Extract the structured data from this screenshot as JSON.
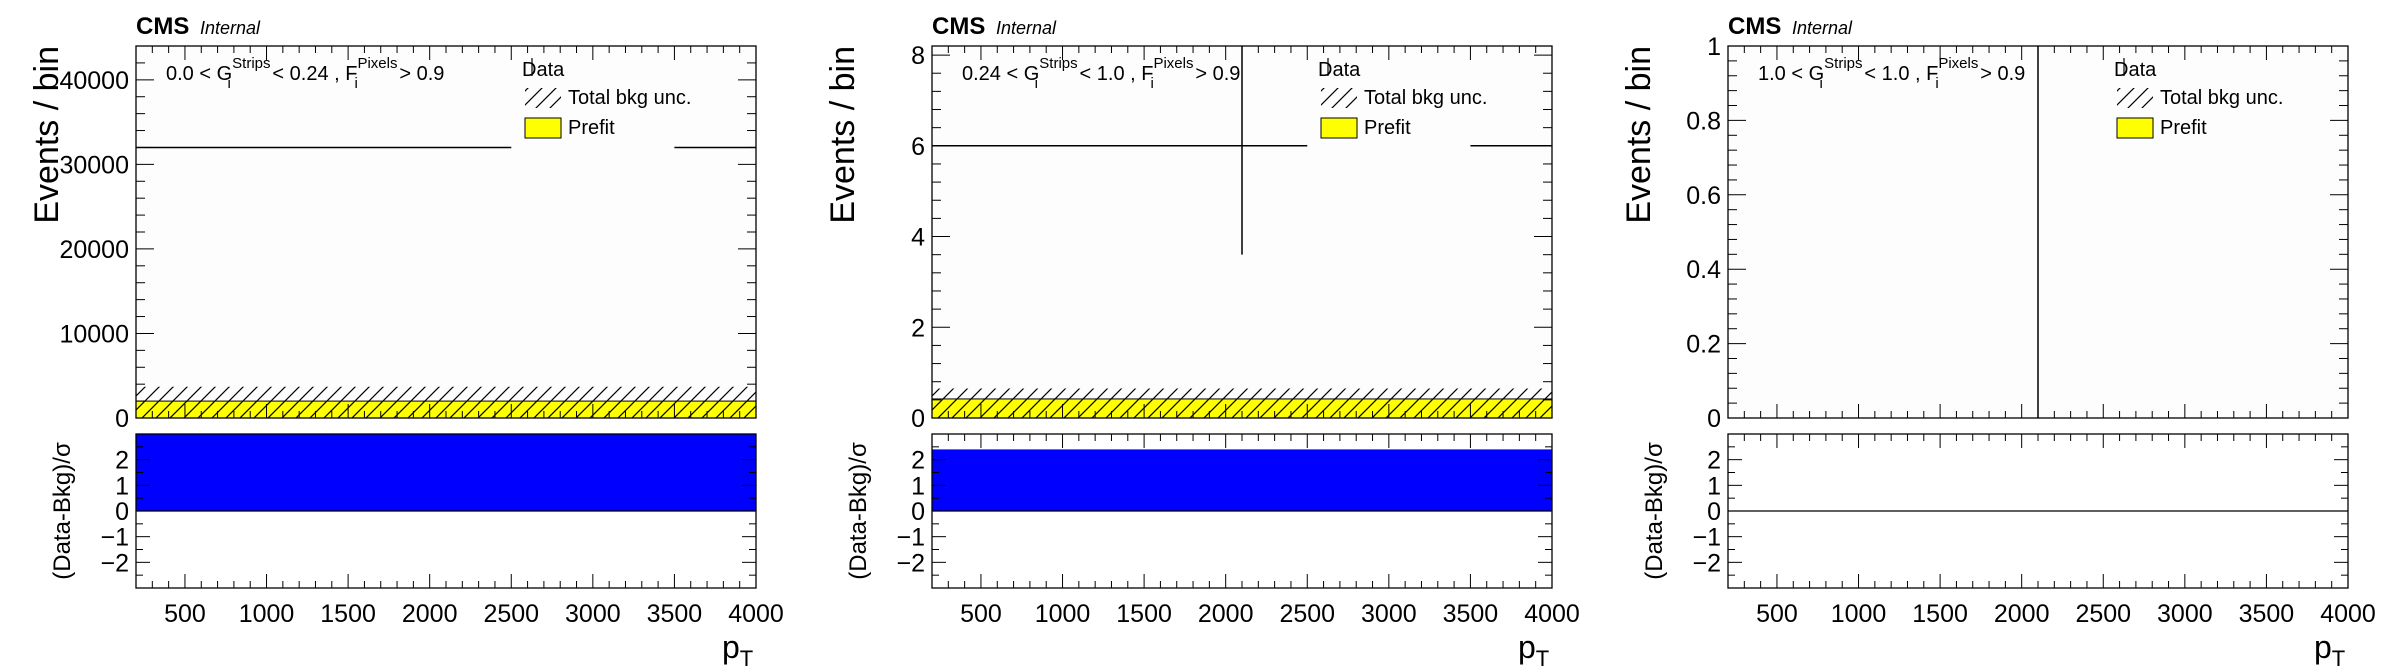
{
  "colors": {
    "prefit_fill": "#ffff00",
    "prefit_line": "#000000",
    "pull_fill": "#0000ff",
    "data_marker": "#000000",
    "unc_hatch": "#000000"
  },
  "chart_data": [
    {
      "type": "bar",
      "cms_label": "CMS",
      "cms_sublabel": "Internal",
      "region": {
        "g_lo": "0.0",
        "g_hi": "0.24",
        "f_cut": "0.9"
      },
      "ylabel": "Events / bin",
      "ylim": [
        0,
        44000
      ],
      "yticks": [
        0,
        10000,
        20000,
        30000,
        40000
      ],
      "yticklabels": [
        "0",
        "10000",
        "20000",
        "30000",
        "40000"
      ],
      "xlabel": "p",
      "xlabel_sub": "T",
      "xlim": [
        200,
        4000
      ],
      "xticks": [
        500,
        1000,
        1500,
        2000,
        2500,
        3000,
        3500,
        4000
      ],
      "prefit": 2000,
      "bkg_unc_top": 3700,
      "data_segments": [
        {
          "x0": 200,
          "x1": 2500,
          "y": 32000
        },
        {
          "x0": 3500,
          "x1": 4000,
          "y": 32000
        }
      ],
      "data_vertical": null,
      "legend": {
        "data": "Data",
        "unc": "Total bkg unc.",
        "prefit": "Prefit"
      },
      "ratio": {
        "ylabel": "(Data-Bkg)/σ",
        "ylim": [
          -3,
          3
        ],
        "yticks": [
          -2,
          -1,
          0,
          1,
          2
        ],
        "yticklabels": [
          "−2",
          "−1",
          "0",
          "1",
          "2"
        ],
        "pull": 3
      }
    },
    {
      "type": "bar",
      "cms_label": "CMS",
      "cms_sublabel": "Internal",
      "region": {
        "g_lo": "0.24",
        "g_hi": "1.0",
        "f_cut": "0.9"
      },
      "ylabel": "Events / bin",
      "ylim": [
        0,
        8.2
      ],
      "yticks": [
        0,
        2,
        4,
        6,
        8
      ],
      "yticklabels": [
        "0",
        "2",
        "4",
        "6",
        "8"
      ],
      "xlabel": "p",
      "xlabel_sub": "T",
      "xlim": [
        200,
        4000
      ],
      "xticks": [
        500,
        1000,
        1500,
        2000,
        2500,
        3000,
        3500,
        4000
      ],
      "prefit": 0.42,
      "bkg_unc_top": 0.65,
      "data_segments": [
        {
          "x0": 200,
          "x1": 2500,
          "y": 6
        },
        {
          "x0": 3500,
          "x1": 4000,
          "y": 6
        }
      ],
      "data_vertical": {
        "x": 2100,
        "y0": 3.6,
        "y1": 8.2
      },
      "legend": {
        "data": "Data",
        "unc": "Total bkg unc.",
        "prefit": "Prefit"
      },
      "ratio": {
        "ylabel": "(Data-Bkg)/σ",
        "ylim": [
          -3,
          3
        ],
        "yticks": [
          -2,
          -1,
          0,
          1,
          2
        ],
        "yticklabels": [
          "−2",
          "−1",
          "0",
          "1",
          "2"
        ],
        "pull": 2.4
      }
    },
    {
      "type": "bar",
      "cms_label": "CMS",
      "cms_sublabel": "Internal",
      "region": {
        "g_lo": "1.0",
        "g_hi": "1.0",
        "f_cut": "0.9"
      },
      "ylabel": "Events / bin",
      "ylim": [
        0,
        1
      ],
      "yticks": [
        0,
        0.2,
        0.4,
        0.6,
        0.8,
        1
      ],
      "yticklabels": [
        "0",
        "0.2",
        "0.4",
        "0.6",
        "0.8",
        "1"
      ],
      "xlabel": "p",
      "xlabel_sub": "T",
      "xlim": [
        200,
        4000
      ],
      "xticks": [
        500,
        1000,
        1500,
        2000,
        2500,
        3000,
        3500,
        4000
      ],
      "prefit": 0,
      "bkg_unc_top": 0,
      "data_segments": [],
      "data_vertical": {
        "x": 2100,
        "y0": 0,
        "y1": 1
      },
      "legend": {
        "data": "Data",
        "unc": "Total bkg unc.",
        "prefit": "Prefit"
      },
      "ratio": {
        "ylabel": "(Data-Bkg)/σ",
        "ylim": [
          -3,
          3
        ],
        "yticks": [
          -2,
          -1,
          0,
          1,
          2
        ],
        "yticklabels": [
          "−2",
          "−1",
          "0",
          "1",
          "2"
        ],
        "pull": 0
      }
    }
  ]
}
